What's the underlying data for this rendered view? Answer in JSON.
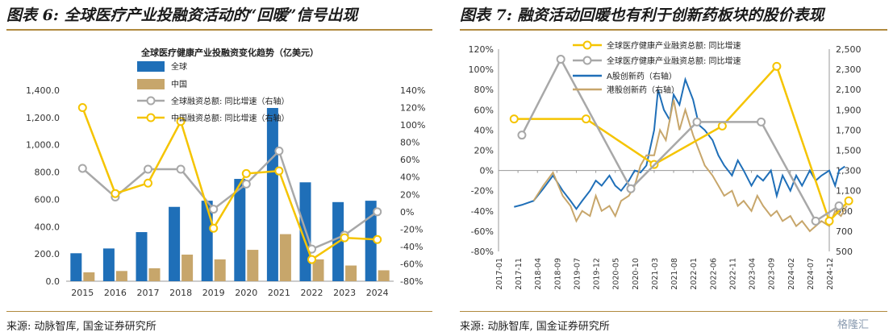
{
  "left_panel": {
    "heading": "图表 6: 全球医疗产业投融资活动的“回暖”信号出现",
    "source": "来源: 动脉智库, 国金证券研究所",
    "chart_data": {
      "type": "bar",
      "title": "全球医疗健康产业投融资变化趋势（亿美元）",
      "categories": [
        "2015",
        "2016",
        "2017",
        "2018",
        "2019",
        "2020",
        "2021",
        "2022",
        "2023",
        "2024"
      ],
      "ylim": [
        0,
        1400
      ],
      "y_ticks": [
        "0.0",
        "200.0",
        "400.0",
        "600.0",
        "800.0",
        "1,000.0",
        "1,200.0",
        "1,400.0"
      ],
      "y_tick_values": [
        0,
        200,
        400,
        600,
        800,
        1000,
        1200,
        1400
      ],
      "y2lim": [
        -80,
        140
      ],
      "y2_ticks": [
        "-80%",
        "-60%",
        "-40%",
        "-20%",
        "0%",
        "20%",
        "40%",
        "60%",
        "80%",
        "100%",
        "120%",
        "140%"
      ],
      "y2_tick_values": [
        -80,
        -60,
        -40,
        -20,
        0,
        20,
        40,
        60,
        80,
        100,
        120,
        140
      ],
      "series": [
        {
          "name": "全球",
          "kind": "bar",
          "color": "#1f6fb8",
          "values": [
            205,
            240,
            360,
            545,
            590,
            750,
            1270,
            725,
            580,
            590
          ]
        },
        {
          "name": "中国",
          "kind": "bar",
          "color": "#c7a66b",
          "values": [
            65,
            75,
            95,
            195,
            160,
            230,
            345,
            160,
            115,
            80
          ]
        },
        {
          "name": "全球融资总额: 同比增速（右轴）",
          "kind": "line",
          "axis": "right",
          "color": "#a8a8a8",
          "values": [
            50,
            17,
            49,
            49,
            3,
            32,
            70,
            -43,
            -27,
            0
          ]
        },
        {
          "name": "中国融资总额: 同比增速（右轴）",
          "kind": "line",
          "axis": "right",
          "color": "#f5c400",
          "values": [
            120,
            21,
            33,
            104,
            -19,
            44,
            47,
            -55,
            -30,
            -32
          ]
        }
      ],
      "legend_position": "top-left"
    }
  },
  "right_panel": {
    "heading": "图表 7: 融资活动回暖也有利于创新药板块的股价表现",
    "source": "来源: 动脉智库, 国金证券研究所",
    "chart_data": {
      "type": "line",
      "x_labels": [
        "2017-01",
        "2017-11",
        "2018-04",
        "2018-09",
        "2019-07",
        "2019-12",
        "2020-05",
        "2020-10",
        "2021-03",
        "2021-08",
        "2022-01",
        "2022-06",
        "2022-11",
        "2023-04",
        "2023-09",
        "2024-02",
        "2024-07",
        "2024-12"
      ],
      "ylim": [
        -80,
        120
      ],
      "y_ticks": [
        "-80%",
        "-60%",
        "-40%",
        "-20%",
        "0%",
        "20%",
        "40%",
        "60%",
        "80%",
        "100%",
        "120%"
      ],
      "y_tick_values": [
        -80,
        -60,
        -40,
        -20,
        0,
        20,
        40,
        60,
        80,
        100,
        120
      ],
      "y2lim": [
        500,
        2500
      ],
      "y2_ticks": [
        "500",
        "700",
        "900",
        "1,100",
        "1,300",
        "1,500",
        "1,700",
        "1,900",
        "2,100",
        "2,300",
        "2,500"
      ],
      "y2_tick_values": [
        500,
        700,
        900,
        1100,
        1300,
        1500,
        1700,
        1900,
        2100,
        2300,
        2500
      ],
      "series": [
        {
          "name": "全球医疗健康产业融资总额: 同比增速",
          "axis": "left",
          "color": "#f5c400",
          "marker": "circle",
          "x": [
            0.8,
            4.5,
            8.0,
            11.5,
            14.3,
            17.0,
            18.0
          ],
          "values": [
            51,
            51,
            6,
            44,
            103,
            -50,
            -30
          ]
        },
        {
          "name": "全球医疗健康产业融资总额: 同比增速",
          "axis": "left",
          "color": "#a8a8a8",
          "marker": "circle",
          "x": [
            1.2,
            3.2,
            6.8,
            10.2,
            13.5,
            16.3,
            17.5
          ],
          "values": [
            35,
            110,
            -18,
            48,
            48,
            -50,
            -35
          ]
        },
        {
          "name": "A股创新药（右轴）",
          "axis": "right",
          "color": "#1f6fb8",
          "marker": "none",
          "x": [
            0.8,
            1.2,
            1.8,
            2.3,
            2.8,
            3.3,
            3.7,
            4.0,
            4.3,
            4.7,
            5.0,
            5.3,
            5.7,
            6.0,
            6.3,
            6.7,
            7.0,
            7.3,
            7.6,
            8.0,
            8.2,
            8.5,
            8.8,
            9.0,
            9.3,
            9.6,
            10.0,
            10.3,
            10.6,
            11.0,
            11.3,
            11.6,
            12.0,
            12.3,
            12.6,
            13.0,
            13.3,
            13.6,
            14.0,
            14.3,
            14.6,
            15.0,
            15.3,
            15.6,
            16.0,
            16.3,
            16.6,
            17.0,
            17.3,
            17.5,
            17.8
          ],
          "values": [
            940,
            960,
            1000,
            1120,
            1250,
            1100,
            1000,
            920,
            1000,
            1100,
            1200,
            1150,
            1250,
            1150,
            1100,
            1200,
            1300,
            1280,
            1350,
            1700,
            2100,
            1900,
            1800,
            2050,
            1950,
            2200,
            2000,
            1750,
            1700,
            1600,
            1450,
            1350,
            1250,
            1400,
            1300,
            1150,
            1250,
            1200,
            1300,
            1050,
            1250,
            1100,
            1250,
            1150,
            1300,
            1200,
            1250,
            1300,
            1150,
            1300,
            1340
          ]
        },
        {
          "name": "港股创新药（右轴）",
          "axis": "right",
          "color": "#c7a66b",
          "marker": "none",
          "x": [
            1.8,
            2.3,
            2.8,
            3.3,
            3.7,
            4.0,
            4.3,
            4.7,
            5.0,
            5.3,
            5.7,
            6.0,
            6.3,
            6.7,
            7.0,
            7.3,
            7.6,
            8.0,
            8.3,
            8.6,
            9.0,
            9.3,
            9.6,
            10.0,
            10.3,
            10.6,
            11.0,
            11.3,
            11.6,
            12.0,
            12.3,
            12.6,
            13.0,
            13.3,
            13.6,
            14.0,
            14.3,
            14.6,
            15.0,
            15.3,
            15.6,
            16.0,
            16.3,
            16.6,
            17.0,
            17.3,
            17.6,
            17.9
          ],
          "values": [
            1000,
            1150,
            1280,
            1050,
            950,
            800,
            900,
            850,
            1050,
            900,
            950,
            850,
            1000,
            1050,
            1150,
            1350,
            1450,
            1450,
            1700,
            1600,
            2000,
            1700,
            1900,
            1650,
            1500,
            1350,
            1250,
            1150,
            1050,
            1100,
            950,
            1000,
            900,
            1050,
            950,
            850,
            900,
            800,
            850,
            750,
            800,
            700,
            750,
            800,
            750,
            900,
            850,
            950
          ]
        }
      ],
      "legend_position": "top-left"
    }
  },
  "watermark": "格隆汇"
}
